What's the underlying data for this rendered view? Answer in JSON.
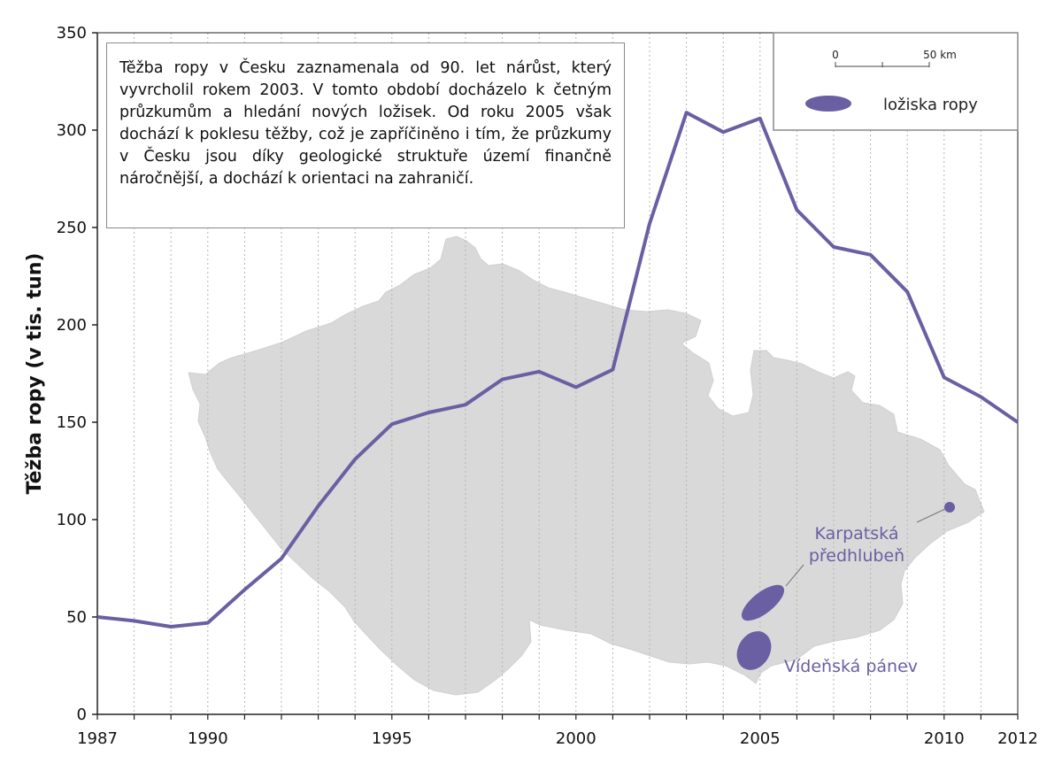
{
  "colors": {
    "line": "#6a5fa3",
    "deposit": "#6a5fa3",
    "map": "#d9d9d9",
    "grid": "#b5b5b5"
  },
  "chart_data": {
    "type": "line",
    "ylabel": "Těžba ropy (v tis. tun)",
    "xlabel": "",
    "xlim": [
      1987,
      2012
    ],
    "ylim": [
      0,
      350
    ],
    "x_ticks": [
      "1987",
      "1990",
      "1995",
      "2000",
      "2005",
      "2010",
      "2012"
    ],
    "y_ticks": [
      "0",
      "50",
      "100",
      "150",
      "200",
      "250",
      "300",
      "350"
    ],
    "grid": "vertical dotted lines at every year",
    "series": [
      {
        "x": [
          1987,
          1988,
          1989,
          1990,
          1991,
          1992,
          1993,
          1994,
          1995,
          1996,
          1997,
          1998,
          1999,
          2000,
          2001,
          2002,
          2003,
          2004,
          2005,
          2006,
          2007,
          2008,
          2009,
          2010,
          2011,
          2012
        ],
        "values": [
          50,
          48,
          45,
          47,
          64,
          80,
          107,
          131,
          149,
          155,
          159,
          172,
          176,
          168,
          177,
          252,
          309,
          299,
          306,
          259,
          240,
          236,
          217,
          173,
          163,
          150
        ]
      }
    ]
  },
  "info_box": {
    "text": "Těžba ropy v Česku zaznamenala od 90. let nárůst, který vyvrcholil rokem 2003. V tomto období docházelo k četným průzkumům a hledání nových ložisek. Od roku 2005 však dochází k poklesu těžby, což je zapříčiněno i tím, že průzkumy v Česku jsou díky geologické struktuře území finančně náročnější, a dochází k orientaci na zahraničí."
  },
  "legend": {
    "scale_start": "0",
    "scale_end": "50 km",
    "deposit_label": "ložiska ropy"
  },
  "map_labels": {
    "karpatska": [
      "Karpatská",
      "předhlubeň"
    ],
    "videnska": "Vídeňská pánev"
  }
}
